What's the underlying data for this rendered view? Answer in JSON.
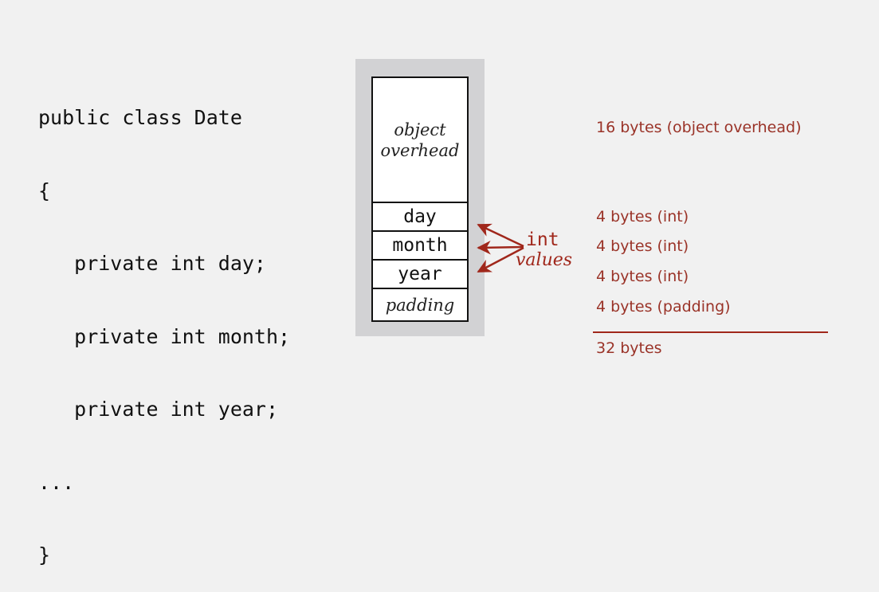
{
  "code": {
    "lines": [
      "public class Date",
      "{",
      "   private int day;",
      "   private int month;",
      "   private int year;",
      "...",
      "}"
    ]
  },
  "memory": {
    "overhead_line1": "object",
    "overhead_line2": "overhead",
    "fields": [
      "day",
      "month",
      "year"
    ],
    "padding": "padding"
  },
  "annotation": {
    "type": "int",
    "values": "values"
  },
  "sizes": {
    "overhead": "16 bytes (object overhead)",
    "day": "4 bytes (int)",
    "month": "4 bytes (int)",
    "year": "4 bytes (int)",
    "padding": "4 bytes (padding)",
    "total": "32 bytes"
  },
  "colors": {
    "accent": "#a0271b",
    "background": "#f1f1f1",
    "frame": "#d2d2d4"
  }
}
